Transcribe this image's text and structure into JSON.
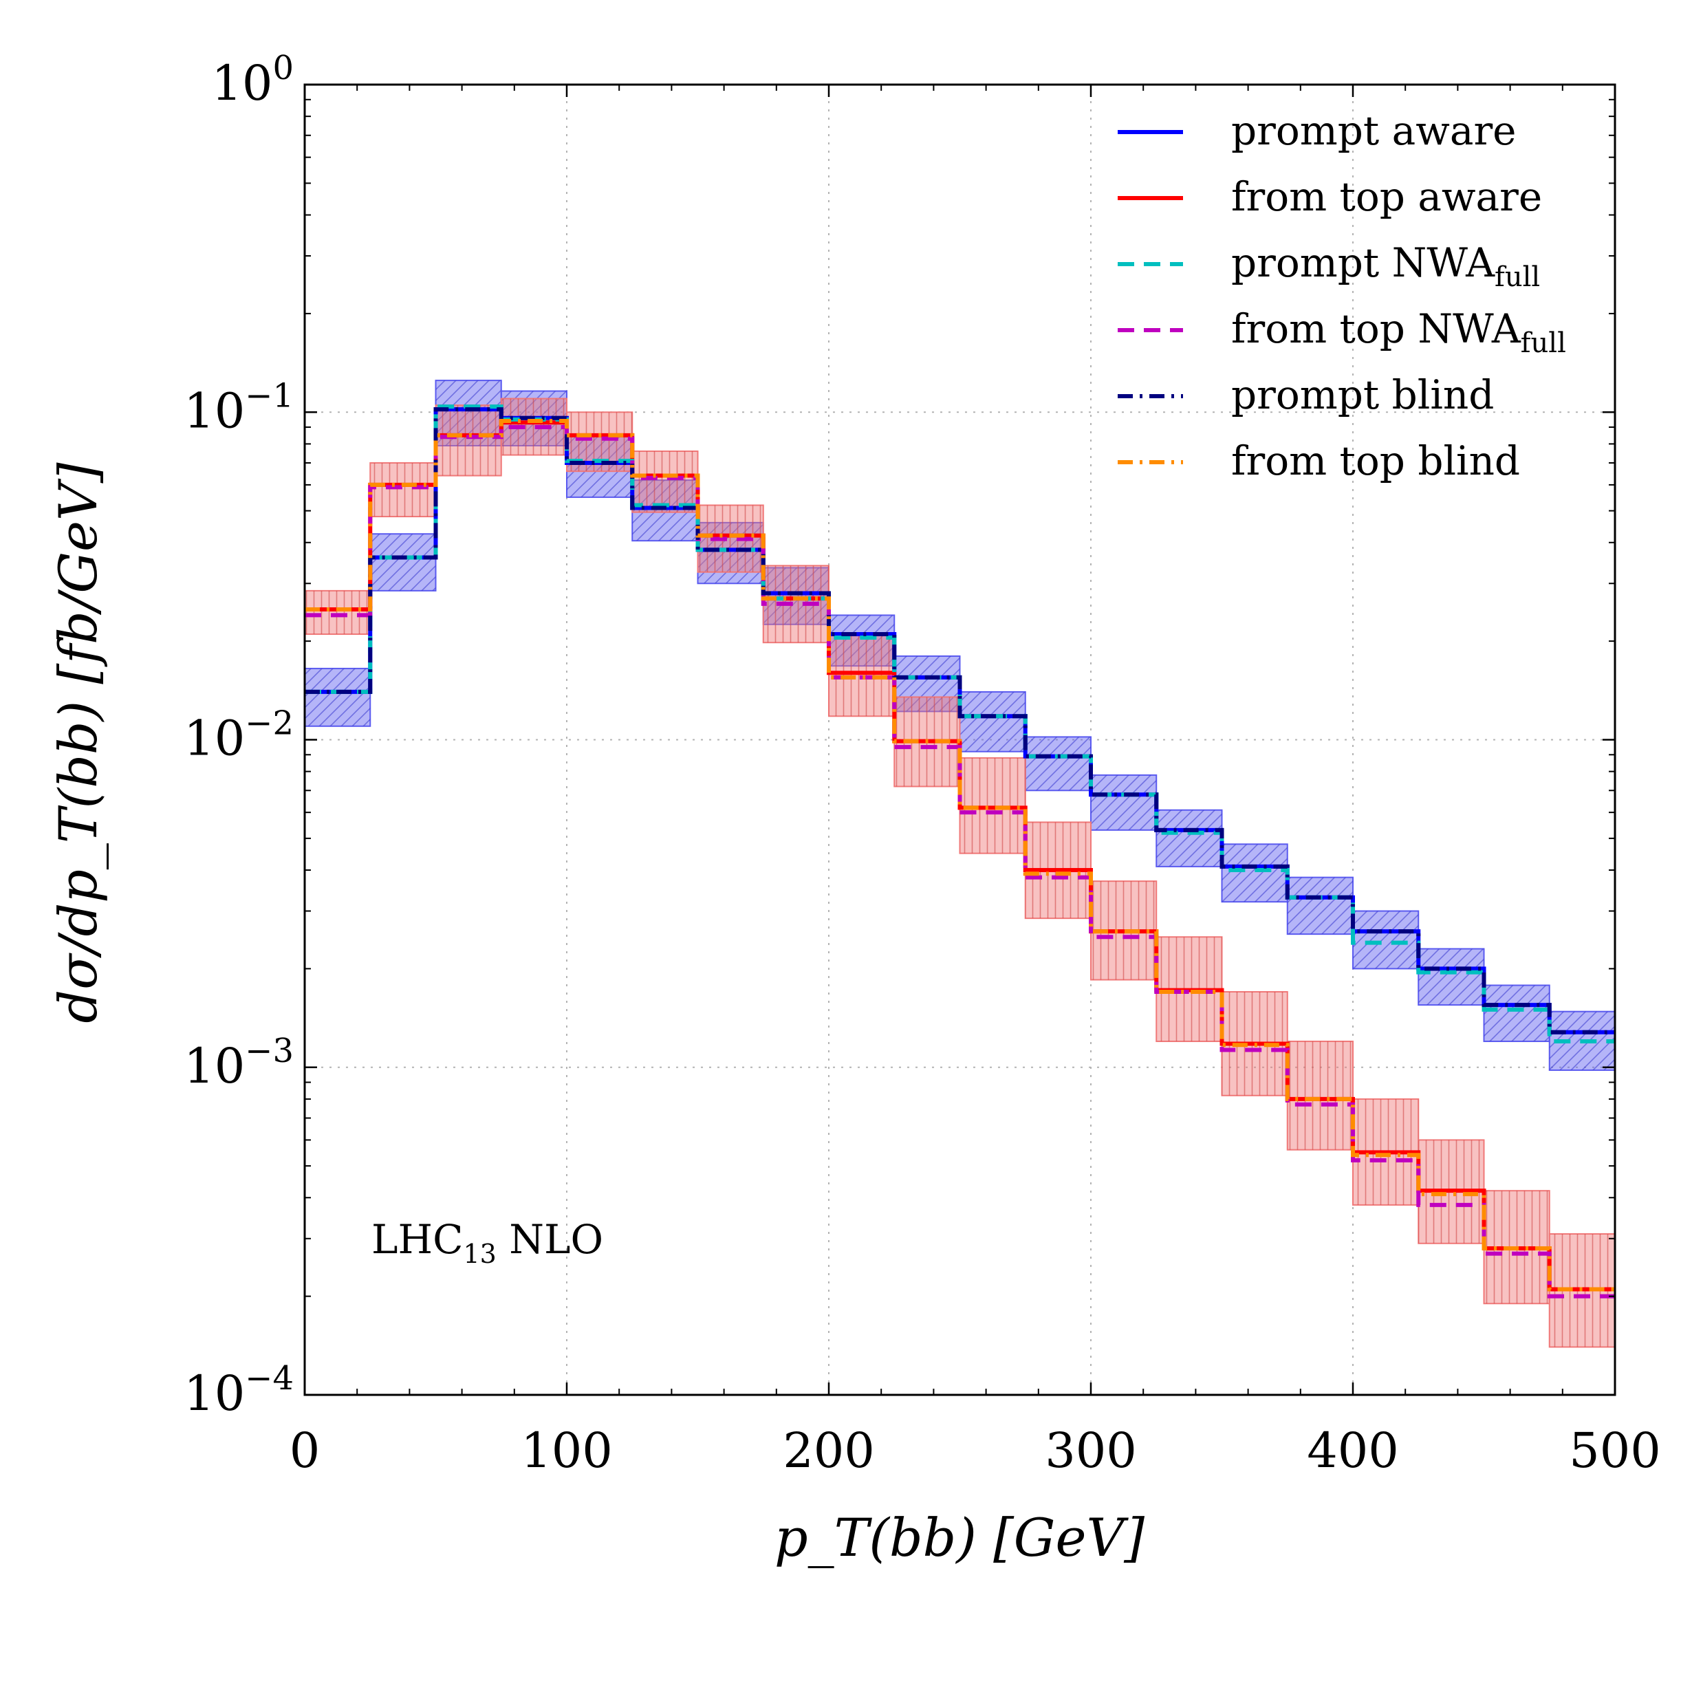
{
  "chart_data": {
    "type": "step-histogram",
    "title": "",
    "xlabel": "p_T(bb) [GeV]",
    "ylabel": "dσ/dp_T(bb) [fb/GeV]",
    "xlim": [
      0,
      500
    ],
    "ylim": [
      0.0001,
      1
    ],
    "yscale": "log",
    "grid": true,
    "legend_position": "top-right",
    "annotation": {
      "main": "LHC",
      "sub": "13",
      "tail": " NLO"
    },
    "x_ticks": [
      "0",
      "100",
      "200",
      "300",
      "400",
      "500"
    ],
    "y_ticks": [
      {
        "base": "10",
        "exp": "−4"
      },
      {
        "base": "10",
        "exp": "−3"
      },
      {
        "base": "10",
        "exp": "−2"
      },
      {
        "base": "10",
        "exp": "−1"
      },
      {
        "base": "10",
        "exp": "0"
      }
    ],
    "bin_edges": [
      0,
      25,
      50,
      75,
      100,
      125,
      150,
      175,
      200,
      225,
      250,
      275,
      300,
      325,
      350,
      375,
      400,
      425,
      450,
      475,
      500
    ],
    "series": [
      {
        "name": "prompt aware",
        "label_main": "prompt aware",
        "label_sub": "",
        "color": "#0000ff",
        "style": "solid",
        "values": [
          0.014,
          0.036,
          0.102,
          0.096,
          0.07,
          0.051,
          0.038,
          0.028,
          0.021,
          0.0155,
          0.0118,
          0.0089,
          0.0068,
          0.0053,
          0.0041,
          0.0033,
          0.0026,
          0.002,
          0.00155,
          0.00128
        ]
      },
      {
        "name": "from top aware",
        "label_main": "from top aware",
        "label_sub": "",
        "color": "#ff0000",
        "style": "solid",
        "values": [
          0.025,
          0.06,
          0.085,
          0.093,
          0.085,
          0.064,
          0.042,
          0.027,
          0.016,
          0.0099,
          0.0062,
          0.004,
          0.0026,
          0.00172,
          0.00118,
          0.0008,
          0.00055,
          0.00042,
          0.00028,
          0.00021
        ]
      },
      {
        "name": "prompt NWA_full",
        "label_main": "prompt NWA",
        "label_sub": "full",
        "color": "#00bfbf",
        "style": "dashed",
        "values": [
          0.014,
          0.036,
          0.104,
          0.095,
          0.071,
          0.052,
          0.038,
          0.027,
          0.0205,
          0.0155,
          0.0118,
          0.0089,
          0.0068,
          0.0052,
          0.004,
          0.0033,
          0.0024,
          0.00195,
          0.0015,
          0.0012
        ]
      },
      {
        "name": "from top NWA_full",
        "label_main": "from top NWA",
        "label_sub": "full",
        "color": "#bf00bf",
        "style": "dashed",
        "values": [
          0.024,
          0.059,
          0.084,
          0.09,
          0.083,
          0.063,
          0.041,
          0.026,
          0.0155,
          0.0095,
          0.006,
          0.0038,
          0.0025,
          0.0017,
          0.00113,
          0.00077,
          0.00052,
          0.00038,
          0.00027,
          0.0002
        ]
      },
      {
        "name": "prompt blind",
        "label_main": "prompt blind",
        "label_sub": "",
        "color": "#00007f",
        "style": "dashdot",
        "values": [
          0.014,
          0.036,
          0.102,
          0.096,
          0.07,
          0.051,
          0.038,
          0.028,
          0.021,
          0.0155,
          0.0118,
          0.0089,
          0.0068,
          0.0053,
          0.0041,
          0.0033,
          0.0026,
          0.002,
          0.00155,
          0.00128
        ]
      },
      {
        "name": "from top blind",
        "label_main": "from top blind",
        "label_sub": "",
        "color": "#ff8c00",
        "style": "dashdot",
        "values": [
          0.025,
          0.06,
          0.085,
          0.094,
          0.085,
          0.064,
          0.042,
          0.027,
          0.0155,
          0.0099,
          0.0062,
          0.0039,
          0.0026,
          0.0017,
          0.00117,
          0.0008,
          0.00054,
          0.00041,
          0.00028,
          0.00021
        ]
      }
    ],
    "bands": [
      {
        "name": "prompt uncertainty",
        "color": "#5a5af0",
        "hatch": "diagonal",
        "low": [
          0.011,
          0.0285,
          0.079,
          0.079,
          0.055,
          0.0405,
          0.03,
          0.0225,
          0.0168,
          0.0122,
          0.0092,
          0.007,
          0.0053,
          0.0041,
          0.0032,
          0.00255,
          0.002,
          0.00155,
          0.0012,
          0.00098
        ],
        "high": [
          0.0165,
          0.0425,
          0.125,
          0.116,
          0.085,
          0.062,
          0.046,
          0.0335,
          0.024,
          0.018,
          0.014,
          0.0102,
          0.0078,
          0.0061,
          0.0048,
          0.0038,
          0.003,
          0.0023,
          0.00178,
          0.00148
        ]
      },
      {
        "name": "from top uncertainty",
        "color": "#f07878",
        "hatch": "vertical",
        "low": [
          0.021,
          0.048,
          0.064,
          0.074,
          0.066,
          0.0495,
          0.0325,
          0.0198,
          0.0118,
          0.0072,
          0.0045,
          0.00285,
          0.00185,
          0.0012,
          0.00082,
          0.00056,
          0.00038,
          0.00029,
          0.00019,
          0.00014
        ],
        "high": [
          0.0285,
          0.07,
          0.105,
          0.11,
          0.1,
          0.076,
          0.052,
          0.034,
          0.021,
          0.0135,
          0.0088,
          0.0056,
          0.0037,
          0.0025,
          0.0017,
          0.0012,
          0.0008,
          0.0006,
          0.00042,
          0.00031
        ]
      }
    ]
  }
}
